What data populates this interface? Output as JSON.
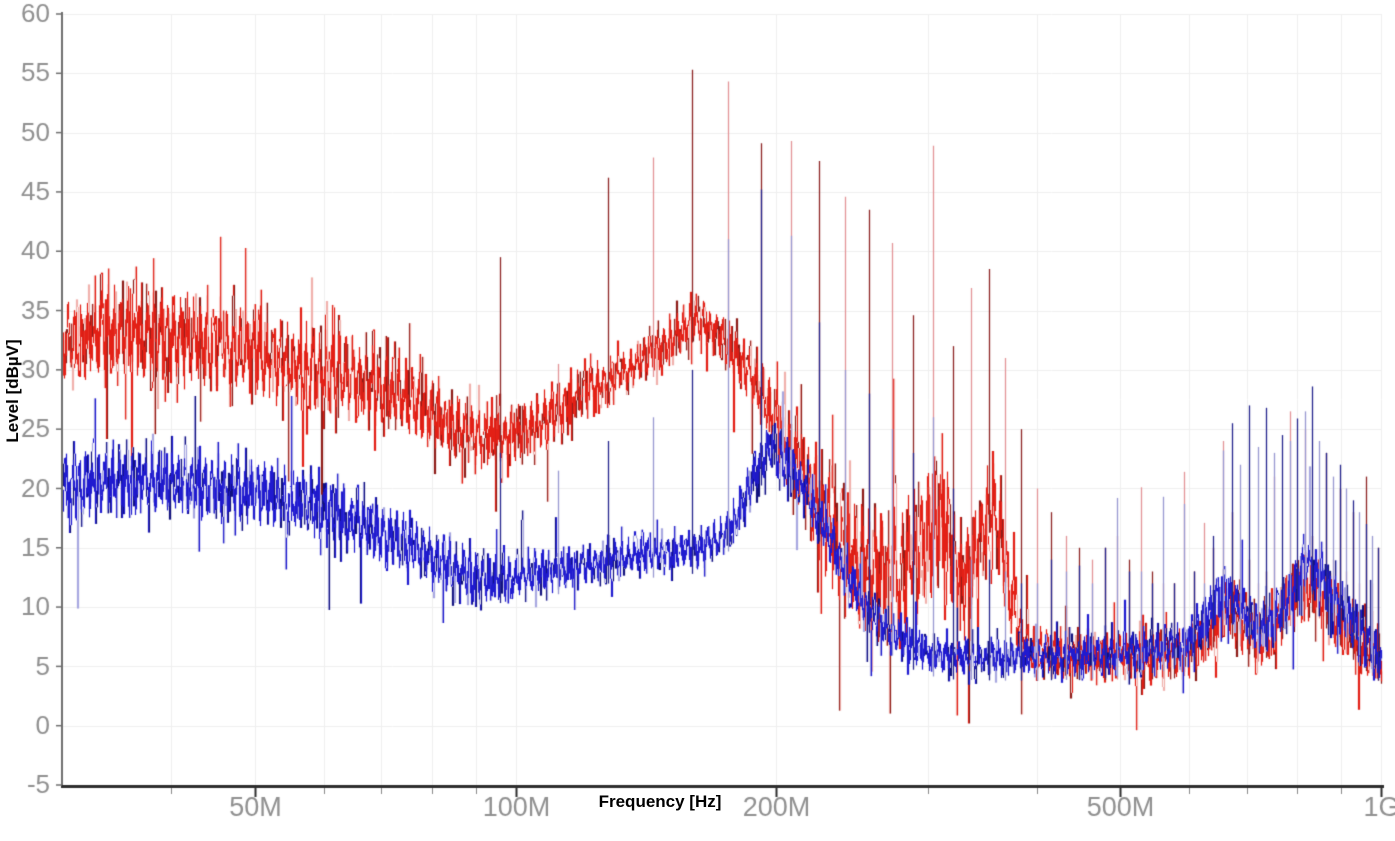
{
  "chart_data": {
    "type": "line",
    "title": "",
    "xlabel": "Frequency [Hz]",
    "ylabel": "Level [dBµV]",
    "x_scale": "log",
    "x_min_hz": 30000000,
    "x_max_hz": 1000000000,
    "ylim": [
      -5,
      60
    ],
    "y_tick_step_db": 5,
    "grid": true,
    "legend": "none",
    "x_major_ticks": [
      {
        "hz": 50000000,
        "label": "50M"
      },
      {
        "hz": 100000000,
        "label": "100M"
      },
      {
        "hz": 200000000,
        "label": "200M"
      },
      {
        "hz": 500000000,
        "label": "500M"
      },
      {
        "hz": 1000000000,
        "label": "1G"
      }
    ],
    "x_minor_tick_mhz": [
      40,
      60,
      70,
      80,
      90,
      300,
      400,
      600,
      700,
      800,
      900
    ],
    "colors": {
      "background": "#ffffff",
      "grid": "#f0f0f0",
      "axis_x": "#2e2e2e",
      "axis_y": "#6f6f6f",
      "tick_minor": "#8a8a8a",
      "tick_label": "#919191",
      "axis_title": "#000000"
    },
    "harmonic_spacing_mhz": 16,
    "series": [
      {
        "name": "trace-1-red",
        "color": "#e32017",
        "color_dark": "#8f1d18",
        "color_light": "#f0b2ae",
        "spike_color_dark": "#8e2626",
        "spike_color_light": "#e49598",
        "envelope_mhz_db": [
          [
            30,
            32.5
          ],
          [
            34,
            33.2
          ],
          [
            38,
            32.8
          ],
          [
            42,
            32.3
          ],
          [
            46,
            32
          ],
          [
            50,
            31.5
          ],
          [
            55,
            30.6
          ],
          [
            60,
            30
          ],
          [
            65,
            29.4
          ],
          [
            70,
            28.5
          ],
          [
            75,
            27.4
          ],
          [
            80,
            26.4
          ],
          [
            85,
            25.4
          ],
          [
            90,
            24.6
          ],
          [
            95,
            24.2
          ],
          [
            100,
            24.6
          ],
          [
            105,
            25.4
          ],
          [
            110,
            26.3
          ],
          [
            115,
            27.2
          ],
          [
            120,
            28.2
          ],
          [
            125,
            28.8
          ],
          [
            130,
            29.4
          ],
          [
            135,
            30.3
          ],
          [
            140,
            31
          ],
          [
            145,
            31.5
          ],
          [
            150,
            32.3
          ],
          [
            155,
            33.3
          ],
          [
            160,
            34.3
          ],
          [
            165,
            34
          ],
          [
            170,
            33.2
          ],
          [
            175,
            32.2
          ],
          [
            180,
            31.2
          ],
          [
            185,
            30
          ],
          [
            190,
            28.6
          ],
          [
            195,
            27.2
          ],
          [
            200,
            25.6
          ],
          [
            210,
            22.4
          ],
          [
            220,
            19.4
          ],
          [
            230,
            16.6
          ],
          [
            240,
            14.6
          ],
          [
            250,
            13.6
          ],
          [
            260,
            13
          ],
          [
            270,
            12.6
          ],
          [
            280,
            13.2
          ],
          [
            290,
            14.2
          ],
          [
            300,
            16
          ],
          [
            308,
            17.6
          ],
          [
            315,
            16
          ],
          [
            322,
            13.4
          ],
          [
            330,
            12.2
          ],
          [
            340,
            14.6
          ],
          [
            350,
            18
          ],
          [
            356,
            18.8
          ],
          [
            362,
            16.6
          ],
          [
            370,
            12
          ],
          [
            380,
            8.6
          ],
          [
            390,
            7
          ],
          [
            400,
            6.4
          ],
          [
            430,
            5.9
          ],
          [
            460,
            5.8
          ],
          [
            500,
            5.9
          ],
          [
            540,
            5.9
          ],
          [
            580,
            6
          ],
          [
            600,
            6.3
          ],
          [
            620,
            7.2
          ],
          [
            640,
            8.6
          ],
          [
            655,
            9.6
          ],
          [
            670,
            9.4
          ],
          [
            685,
            8.8
          ],
          [
            700,
            8.2
          ],
          [
            720,
            7.4
          ],
          [
            740,
            7.8
          ],
          [
            760,
            8.8
          ],
          [
            780,
            10.2
          ],
          [
            800,
            11.2
          ],
          [
            815,
            11.8
          ],
          [
            830,
            11.6
          ],
          [
            845,
            11.2
          ],
          [
            860,
            10.4
          ],
          [
            880,
            9.4
          ],
          [
            900,
            8.6
          ],
          [
            920,
            7.8
          ],
          [
            940,
            7.2
          ],
          [
            960,
            6.6
          ],
          [
            980,
            6.1
          ],
          [
            1000,
            5.6
          ]
        ],
        "noise_halfspread_mhz_db": [
          [
            30,
            4.5
          ],
          [
            60,
            4.5
          ],
          [
            80,
            3.5
          ],
          [
            100,
            2.8
          ],
          [
            130,
            2.2
          ],
          [
            160,
            2.2
          ],
          [
            185,
            2.5
          ],
          [
            200,
            3.5
          ],
          [
            220,
            5
          ],
          [
            240,
            6.5
          ],
          [
            270,
            6.5
          ],
          [
            300,
            6.5
          ],
          [
            320,
            6
          ],
          [
            340,
            5
          ],
          [
            360,
            5
          ],
          [
            380,
            3
          ],
          [
            400,
            2.2
          ],
          [
            500,
            2.2
          ],
          [
            600,
            2.5
          ],
          [
            650,
            3
          ],
          [
            700,
            2.8
          ],
          [
            750,
            3
          ],
          [
            800,
            3.2
          ],
          [
            850,
            3.2
          ],
          [
            900,
            3
          ],
          [
            950,
            2.8
          ],
          [
            1000,
            2.6
          ]
        ]
      },
      {
        "name": "trace-2-blue",
        "color": "#201cd0",
        "color_dark": "#12127f",
        "color_light": "#a8a8e0",
        "spike_color_dark": "#26268e",
        "spike_color_light": "#9a9ad2",
        "envelope_mhz_db": [
          [
            30,
            20.2
          ],
          [
            35,
            20.6
          ],
          [
            40,
            20.5
          ],
          [
            45,
            20.1
          ],
          [
            50,
            19.6
          ],
          [
            55,
            19
          ],
          [
            60,
            18.2
          ],
          [
            65,
            17.2
          ],
          [
            70,
            16.2
          ],
          [
            75,
            15.2
          ],
          [
            80,
            14.2
          ],
          [
            85,
            13.3
          ],
          [
            90,
            12.6
          ],
          [
            95,
            12.3
          ],
          [
            100,
            12.5
          ],
          [
            105,
            12.8
          ],
          [
            110,
            13
          ],
          [
            115,
            13.2
          ],
          [
            120,
            13.5
          ],
          [
            125,
            13.8
          ],
          [
            130,
            14.1
          ],
          [
            135,
            14.3
          ],
          [
            140,
            14.4
          ],
          [
            145,
            14.5
          ],
          [
            150,
            14.5
          ],
          [
            155,
            14.6
          ],
          [
            160,
            14.8
          ],
          [
            165,
            15.1
          ],
          [
            170,
            15.6
          ],
          [
            175,
            16.4
          ],
          [
            180,
            17.8
          ],
          [
            185,
            19.6
          ],
          [
            190,
            21.6
          ],
          [
            195,
            23.2
          ],
          [
            200,
            23.1
          ],
          [
            205,
            22.3
          ],
          [
            210,
            21.2
          ],
          [
            215,
            20.1
          ],
          [
            220,
            18.7
          ],
          [
            230,
            15.8
          ],
          [
            240,
            13.2
          ],
          [
            250,
            10.8
          ],
          [
            260,
            9.2
          ],
          [
            270,
            8.1
          ],
          [
            280,
            7.2
          ],
          [
            290,
            6.6
          ],
          [
            300,
            6.2
          ],
          [
            320,
            5.9
          ],
          [
            360,
            5.8
          ],
          [
            400,
            5.8
          ],
          [
            450,
            5.9
          ],
          [
            500,
            6.1
          ],
          [
            530,
            6.3
          ],
          [
            560,
            6.6
          ],
          [
            590,
            6.9
          ],
          [
            610,
            7.6
          ],
          [
            625,
            8.8
          ],
          [
            640,
            10.2
          ],
          [
            655,
            11
          ],
          [
            670,
            10.6
          ],
          [
            685,
            9.9
          ],
          [
            700,
            9.1
          ],
          [
            715,
            8.3
          ],
          [
            730,
            8.2
          ],
          [
            745,
            8.6
          ],
          [
            760,
            9.4
          ],
          [
            775,
            10.6
          ],
          [
            790,
            11.8
          ],
          [
            805,
            12.8
          ],
          [
            820,
            13.4
          ],
          [
            835,
            13
          ],
          [
            850,
            12.4
          ],
          [
            865,
            11.7
          ],
          [
            880,
            10.8
          ],
          [
            900,
            10
          ],
          [
            920,
            9
          ],
          [
            940,
            8.1
          ],
          [
            960,
            7.2
          ],
          [
            980,
            6.3
          ],
          [
            1000,
            5.5
          ]
        ],
        "noise_halfspread_mhz_db": [
          [
            30,
            3.2
          ],
          [
            50,
            3.2
          ],
          [
            70,
            3
          ],
          [
            90,
            2.6
          ],
          [
            100,
            2.2
          ],
          [
            120,
            1.8
          ],
          [
            150,
            1.8
          ],
          [
            170,
            2
          ],
          [
            190,
            2.4
          ],
          [
            210,
            2.4
          ],
          [
            230,
            2.2
          ],
          [
            260,
            2
          ],
          [
            300,
            1.8
          ],
          [
            400,
            1.7
          ],
          [
            500,
            1.8
          ],
          [
            600,
            2.2
          ],
          [
            650,
            2.6
          ],
          [
            700,
            2.4
          ],
          [
            750,
            2.6
          ],
          [
            800,
            2.8
          ],
          [
            850,
            2.8
          ],
          [
            900,
            2.6
          ],
          [
            950,
            2.4
          ],
          [
            1000,
            2.4
          ]
        ]
      }
    ],
    "spikes_mhz_red_blue": [
      [
        96,
        39.5,
        23
      ],
      [
        112,
        30.5,
        21.5
      ],
      [
        128,
        46.2,
        24
      ],
      [
        144,
        47.9,
        26
      ],
      [
        160,
        55.3,
        30
      ],
      [
        176,
        54.3,
        41
      ],
      [
        192,
        49.1,
        45.2
      ],
      [
        208,
        49.3,
        41.3
      ],
      [
        224,
        47.6,
        34
      ],
      [
        240,
        44.6,
        30
      ],
      [
        256,
        43.5,
        28
      ],
      [
        272,
        40.7,
        25
      ],
      [
        288,
        34.6,
        23
      ],
      [
        304,
        48.9,
        26
      ],
      [
        320,
        32,
        20
      ],
      [
        336,
        36.9,
        14
      ],
      [
        352,
        38.5,
        14
      ],
      [
        368,
        31,
        13
      ],
      [
        384,
        25,
        12
      ],
      [
        400,
        20,
        12
      ],
      [
        416,
        18,
        14
      ],
      [
        432,
        16,
        13
      ],
      [
        448,
        15,
        13.5
      ],
      [
        464,
        14,
        12
      ],
      [
        480,
        15,
        15
      ],
      [
        496,
        16,
        19.2
      ],
      [
        512,
        14,
        13
      ],
      [
        528,
        20.1,
        13
      ],
      [
        544,
        13,
        12
      ],
      [
        560,
        12,
        19.3
      ],
      [
        576,
        12,
        12
      ],
      [
        592,
        21.4,
        18.7
      ],
      [
        608,
        13,
        13
      ],
      [
        624,
        17.1,
        12
      ],
      [
        640,
        15,
        16
      ],
      [
        656,
        24,
        23.2
      ],
      [
        672,
        18,
        25.5
      ],
      [
        688,
        14,
        22
      ],
      [
        704,
        14,
        27
      ],
      [
        720,
        12,
        23.5
      ],
      [
        736,
        13,
        26.8
      ],
      [
        752,
        21,
        23
      ],
      [
        768,
        12,
        24.5
      ],
      [
        784,
        26.5,
        24
      ],
      [
        800,
        14,
        25.9
      ],
      [
        816,
        25,
        26.5
      ],
      [
        832,
        16,
        28.6
      ],
      [
        848,
        15,
        24
      ],
      [
        864,
        23,
        23
      ],
      [
        880,
        14,
        21
      ],
      [
        896,
        20,
        22
      ],
      [
        912,
        13,
        20
      ],
      [
        928,
        18,
        19
      ],
      [
        944,
        12,
        18
      ],
      [
        960,
        21,
        17
      ],
      [
        976,
        12,
        16
      ],
      [
        992,
        15,
        15
      ]
    ]
  }
}
